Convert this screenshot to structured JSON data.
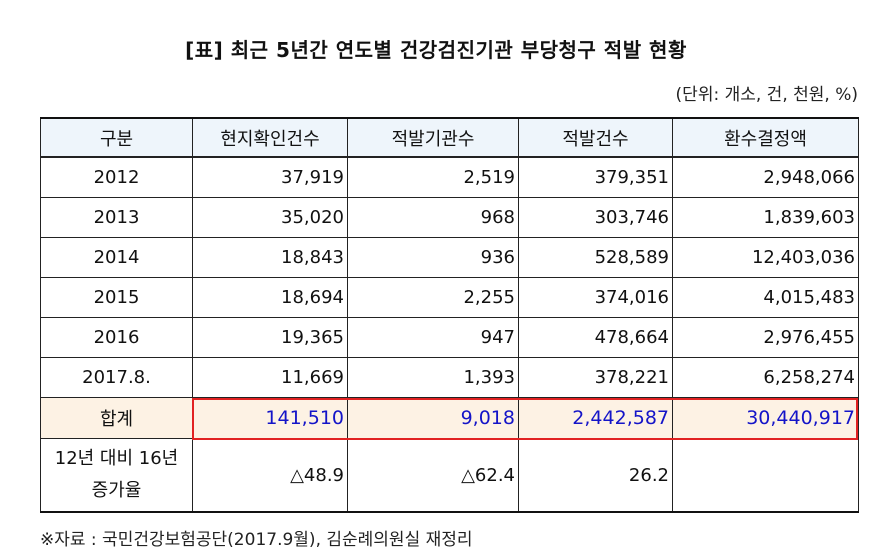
{
  "title": "[표]   최근 5년간 연도별 건강검진기관 부당청구 적발 현황",
  "unit": "(단위: 개소, 건, 천원, %)",
  "headers": [
    "구분",
    "현지확인건수",
    "적발기관수",
    "적발건수",
    "환수결정액"
  ],
  "rows": [
    [
      "2012",
      "37,919",
      "2,519",
      "379,351",
      "2,948,066"
    ],
    [
      "2013",
      "35,020",
      "968",
      "303,746",
      "1,839,603"
    ],
    [
      "2014",
      "18,843",
      "936",
      "528,589",
      "12,403,036"
    ],
    [
      "2015",
      "18,694",
      "2,255",
      "374,016",
      "4,015,483"
    ],
    [
      "2016",
      "19,365",
      "947",
      "478,664",
      "2,976,455"
    ],
    [
      "2017.8.",
      "11,669",
      "1,393",
      "378,221",
      "6,258,274"
    ]
  ],
  "total": [
    "합계",
    "141,510",
    "9,018",
    "2,442,587",
    "30,440,917"
  ],
  "change": [
    "12년 대비 16년 증가율",
    "△48.9",
    "△62.4",
    "26.2",
    ""
  ],
  "source": "※자료 : 국민건강보험공단(2017.9월), 김순례의원실 재정리",
  "colors": {
    "highlight_border": "#e12222",
    "total_text": "#1414c8",
    "total_bg": "#fdf2e4"
  }
}
